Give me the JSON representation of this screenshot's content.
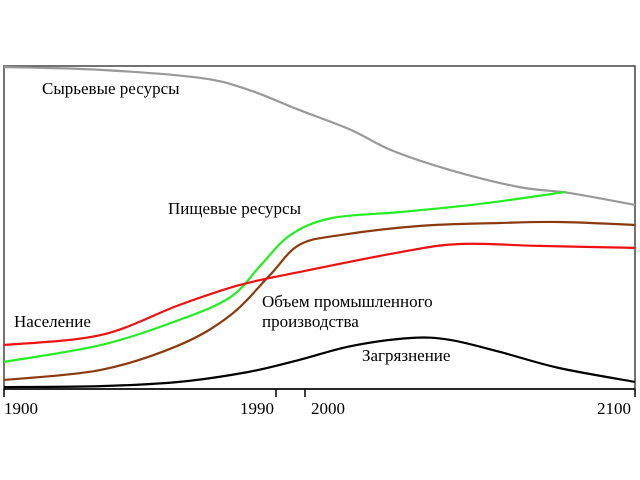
{
  "chart_data": {
    "type": "line",
    "title": "",
    "xlabel": "",
    "ylabel": "",
    "x_ticks": [
      "1900",
      "1990",
      "2000",
      "2100"
    ],
    "xlim": [
      1900,
      2100
    ],
    "ylim": [
      0,
      100
    ],
    "grid": false,
    "legend": "inline labels",
    "series": [
      {
        "name": "Сырьевые ресурсы",
        "color": "#999999",
        "x": [
          1900,
          1932,
          1965,
          1981,
          1998,
          2014,
          2026,
          2044,
          2065,
          2080,
          2100
        ],
        "y": [
          99.7,
          98.8,
          96.3,
          92.6,
          86.4,
          80.2,
          74,
          67.8,
          62.5,
          60.7,
          57
        ]
      },
      {
        "name": "Пищевые ресурсы",
        "color": "#22ee22",
        "x": [
          1900,
          1932,
          1958,
          1975,
          1985,
          1995,
          2008,
          2029,
          2053,
          2079
        ],
        "y": [
          8.4,
          13.6,
          21.4,
          28.5,
          38.4,
          47.7,
          52.9,
          54.8,
          57.3,
          61
        ]
      },
      {
        "name": "Объем промышленного производства",
        "color": "#8b3a0e",
        "x": [
          1900,
          1932,
          1958,
          1975,
          1988,
          1998,
          2011,
          2035,
          2059,
          2077,
          2100
        ],
        "y": [
          2.8,
          5.9,
          13.6,
          22.9,
          35.3,
          44.6,
          47.7,
          50.5,
          51.4,
          51.7,
          50.8
        ]
      },
      {
        "name": "Население",
        "color": "#ee1111",
        "x": [
          1900,
          1932,
          1958,
          1978,
          1998,
          2029,
          2047,
          2071,
          2100
        ],
        "y": [
          13.6,
          16.7,
          26,
          32.2,
          36.2,
          42.4,
          44.9,
          44.3,
          43.7
        ]
      },
      {
        "name": "Загрязнение",
        "color": "#000000",
        "x": [
          1900,
          1932,
          1958,
          1981,
          1998,
          2014,
          2032,
          2044,
          2059,
          2077,
          2100
        ],
        "y": [
          0.6,
          0.9,
          2.2,
          5.3,
          9,
          13.3,
          15.8,
          15.2,
          11.5,
          6.5,
          2.2
        ]
      }
    ],
    "labels": {
      "raw": "Сырьевые ресурсы",
      "food": "Пищевые ресурсы",
      "population": "Население",
      "industry_line1": "Объем промышленного",
      "industry_line2": "производства",
      "pollution": "Загрязнение"
    }
  }
}
